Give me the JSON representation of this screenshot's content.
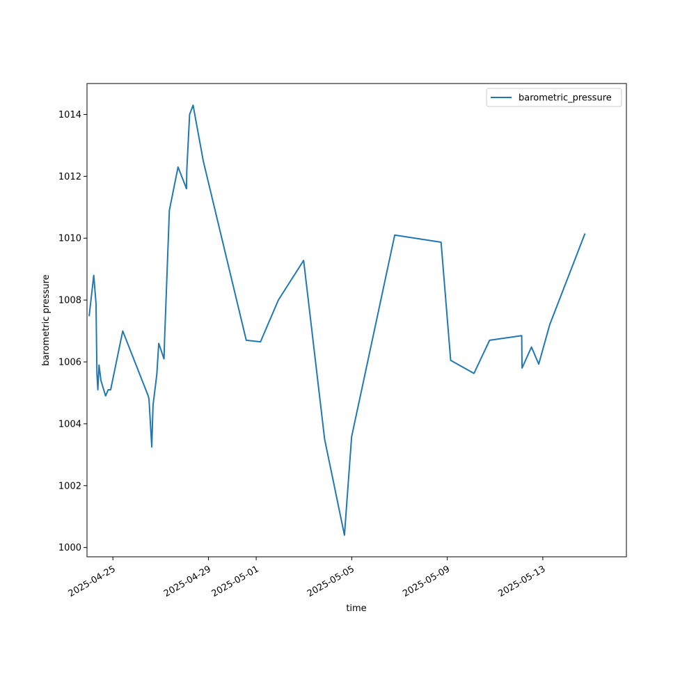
{
  "chart_data": {
    "type": "line",
    "xlabel": "time",
    "ylabel": "barometric pressure",
    "x_tick_labels": [
      "2025-04-25",
      "2025-04-29",
      "2025-05-01",
      "2025-05-05",
      "2025-05-09",
      "2025-05-13"
    ],
    "y_tick_labels": [
      "1000",
      "1002",
      "1004",
      "1006",
      "1008",
      "1010",
      "1012",
      "1014"
    ],
    "x_ticks": [
      "2025-04-25",
      "2025-04-29",
      "2025-05-01",
      "2025-05-05",
      "2025-05-09",
      "2025-05-13"
    ],
    "y_ticks": [
      1000,
      1002,
      1004,
      1006,
      1008,
      1010,
      1012,
      1014
    ],
    "xlim": [
      "2025-04-23 22:00",
      "2025-05-16 12:00"
    ],
    "ylim": [
      999.7,
      1015.0
    ],
    "grid": false,
    "legend_position": "upper right",
    "series": [
      {
        "name": "barometric_pressure",
        "color": "#1f77b4",
        "x": [
          "2025-04-24 00:14",
          "2025-04-24 04:47",
          "2025-04-24 07:02",
          "2025-04-24 08:00",
          "2025-04-24 08:55",
          "2025-04-24 10:05",
          "2025-04-24 12:00",
          "2025-04-24 16:41",
          "2025-04-24 19:20",
          "2025-04-24 21:45",
          "2025-04-25 09:55",
          "2025-04-26 11:31",
          "2025-04-26 12:17",
          "2025-04-26 15:05",
          "2025-04-26 16:20",
          "2025-04-26 20:10",
          "2025-04-26 22:05",
          "2025-04-27 03:22",
          "2025-04-27 03:55",
          "2025-04-27 08:46",
          "2025-04-27 17:29",
          "2025-04-28 01:58",
          "2025-04-28 02:17",
          "2025-04-28 05:06",
          "2025-04-28 08:35",
          "2025-04-28 18:48",
          "2025-04-30 14:01",
          "2025-05-01 04:19",
          "2025-05-01 22:17",
          "2025-05-02 23:41",
          "2025-05-03 20:47",
          "2025-05-04 16:41",
          "2025-05-04 23:53",
          "2025-05-06 19:12",
          "2025-05-08 17:46",
          "2025-05-09 03:26",
          "2025-05-10 02:52",
          "2025-05-10 18:31",
          "2025-05-12 02:48",
          "2025-05-12 03:08",
          "2025-05-12 12:36",
          "2025-05-12 19:55",
          "2025-05-13 06:55",
          "2025-05-14 18:07"
        ],
        "values": [
          1007.5,
          1008.8,
          1007.9,
          1005.6,
          1005.1,
          1005.9,
          1005.4,
          1004.9,
          1005.1,
          1005.1,
          1007.0,
          1004.9,
          1004.8,
          1003.25,
          1004.6,
          1005.6,
          1006.6,
          1006.1,
          1006.7,
          1010.9,
          1012.3,
          1011.6,
          1012.2,
          1014.0,
          1014.3,
          1012.5,
          1006.7,
          1006.65,
          1008.0,
          1009.28,
          1003.5,
          1000.4,
          1003.58,
          1010.1,
          1009.87,
          1006.05,
          1005.63,
          1006.7,
          1006.85,
          1005.8,
          1006.48,
          1005.93,
          1007.2,
          1010.13
        ]
      }
    ]
  }
}
